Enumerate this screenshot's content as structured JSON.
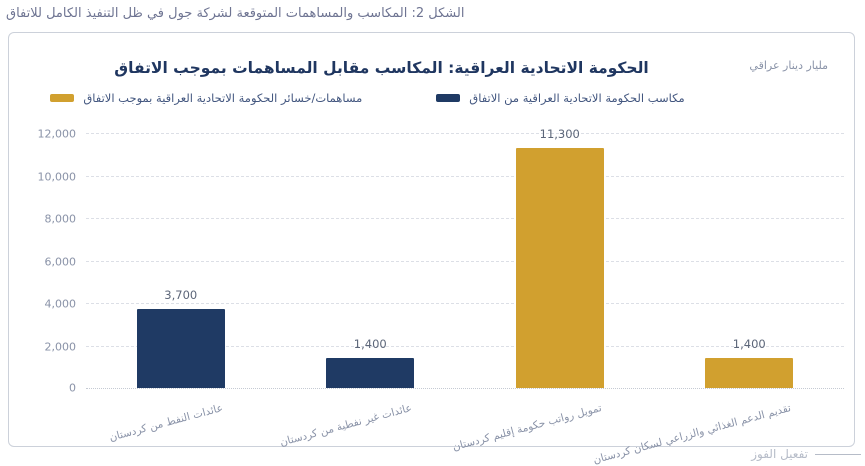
{
  "figure_caption": "الشكل 2: المكاسب والمساهمات المتوقعة لشركة جول في ظل التنفيذ الكامل للاتفاق",
  "unit_label": "مليار دينار عراقي",
  "watermark": "تفعيل الفوز",
  "colors": {
    "navy": "#1f3a64",
    "gold": "#d1a02f",
    "grid": "#dcdfe6",
    "axis_line": "#c5cad3",
    "axis_text": "#8a93a8",
    "title_text": "#1f3660",
    "caption_text": "#6e7492",
    "legend_text": "#42567f",
    "value_text": "#5c6679",
    "border": "#ccd1da",
    "watermark_text": "#b6bcc8"
  },
  "chart_data": {
    "type": "bar",
    "title": "الحكومة الاتحادية العراقية: المكاسب مقابل المساهمات بموجب الاتفاق",
    "ylabel": "مليار دينار عراقي",
    "xlabel": "",
    "categories": [
      "عائدات النفط من كردستان",
      "عائدات غير نفطية من كردستان",
      "تمويل رواتب حكومة إقليم كردستان",
      "تقديم الدعم الغذائي والزراعي لسكان كردستان"
    ],
    "values": [
      3700,
      1400,
      11300,
      1400
    ],
    "value_labels": [
      "3,700",
      "1,400",
      "11,300",
      "1,400"
    ],
    "bar_color_keys": [
      "navy",
      "navy",
      "gold",
      "gold"
    ],
    "ylim": [
      0,
      12000
    ],
    "ytick_labels": [
      "12,000",
      "10,000",
      "8,000",
      "6,000",
      "4,000",
      "2,000",
      "0"
    ],
    "grid": "horizontal dashed",
    "legend_position": "top",
    "legend": [
      {
        "label": "مساهمات/خسائر الحكومة الاتحادية العراقية بموجب الاتفاق",
        "color_key": "gold"
      },
      {
        "label": "مكاسب الحكومة الاتحادية العراقية من الاتفاق",
        "color_key": "navy"
      }
    ]
  }
}
